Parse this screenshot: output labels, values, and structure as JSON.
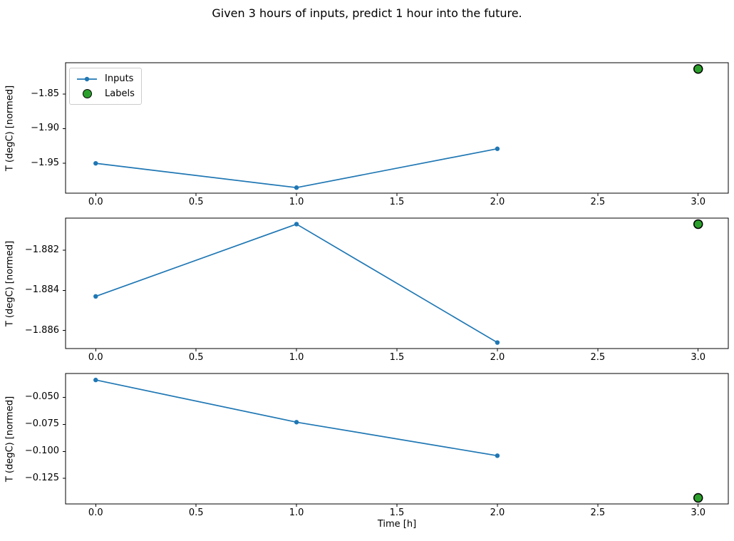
{
  "title": "Given 3 hours of inputs, predict 1 hour into the future.",
  "xlabel": "Time [h]",
  "colors": {
    "inputs_line": "#1f77b4",
    "labels_fill": "#2ca02c",
    "labels_edge": "#000000",
    "axis": "#000000",
    "legend_border": "#cccccc",
    "background": "#ffffff"
  },
  "legend": {
    "position": "upper left",
    "items": [
      {
        "label": "Inputs",
        "marker": "line-with-dot"
      },
      {
        "label": "Labels",
        "marker": "filled-circle"
      }
    ]
  },
  "chart_data": [
    {
      "type": "line",
      "ylabel": "T (degC) [normed]",
      "x": [
        0,
        1,
        2
      ],
      "series": [
        {
          "name": "Inputs",
          "y": [
            -1.95,
            -1.985,
            -1.929
          ]
        }
      ],
      "labels_point": {
        "name": "Labels",
        "x": 3,
        "y": -1.814
      },
      "xlim": [
        -0.15,
        3.15
      ],
      "ylim": [
        -1.993,
        -1.805
      ],
      "xticks": [
        0,
        0.5,
        1,
        1.5,
        2,
        2.5,
        3
      ],
      "xtick_labels": [
        "0.0",
        "0.5",
        "1.0",
        "1.5",
        "2.0",
        "2.5",
        "3.0"
      ],
      "yticks": [
        -1.85,
        -1.9,
        -1.95
      ],
      "ytick_labels": [
        "−1.85",
        "−1.90",
        "−1.95"
      ],
      "grid": false,
      "has_legend": true
    },
    {
      "type": "line",
      "ylabel": "T (degC) [normed]",
      "x": [
        0,
        1,
        2
      ],
      "series": [
        {
          "name": "Inputs",
          "y": [
            -1.8843,
            -1.8807,
            -1.8866
          ]
        }
      ],
      "labels_point": {
        "name": "Labels",
        "x": 3,
        "y": -1.8807
      },
      "xlim": [
        -0.15,
        3.15
      ],
      "ylim": [
        -1.8869,
        -1.8804
      ],
      "xticks": [
        0,
        0.5,
        1,
        1.5,
        2,
        2.5,
        3
      ],
      "xtick_labels": [
        "0.0",
        "0.5",
        "1.0",
        "1.5",
        "2.0",
        "2.5",
        "3.0"
      ],
      "yticks": [
        -1.882,
        -1.884,
        -1.886
      ],
      "ytick_labels": [
        "−1.882",
        "−1.884",
        "−1.886"
      ],
      "grid": false,
      "has_legend": false
    },
    {
      "type": "line",
      "ylabel": "T (degC) [normed]",
      "x": [
        0,
        1,
        2
      ],
      "series": [
        {
          "name": "Inputs",
          "y": [
            -0.034,
            -0.073,
            -0.104
          ]
        }
      ],
      "labels_point": {
        "name": "Labels",
        "x": 3,
        "y": -0.143
      },
      "xlim": [
        -0.15,
        3.15
      ],
      "ylim": [
        -0.1486,
        -0.028
      ],
      "xticks": [
        0,
        0.5,
        1,
        1.5,
        2,
        2.5,
        3
      ],
      "xtick_labels": [
        "0.0",
        "0.5",
        "1.0",
        "1.5",
        "2.0",
        "2.5",
        "3.0"
      ],
      "yticks": [
        -0.05,
        -0.075,
        -0.1,
        -0.125
      ],
      "ytick_labels": [
        "−0.050",
        "−0.075",
        "−0.100",
        "−0.125"
      ],
      "grid": false,
      "has_legend": false
    }
  ]
}
